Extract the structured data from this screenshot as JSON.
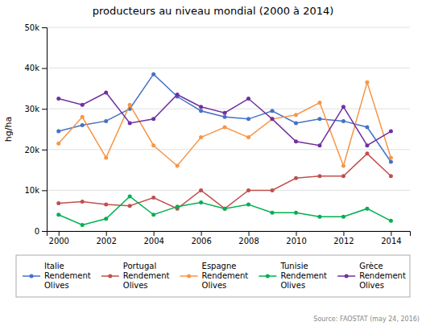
{
  "chart_data": {
    "type": "line",
    "title": "producteurs au niveau mondial (2000 à 2014)",
    "y_label": "hg/ha",
    "x": [
      2000,
      2001,
      2002,
      2003,
      2004,
      2005,
      2006,
      2007,
      2008,
      2009,
      2010,
      2011,
      2012,
      2013,
      2014
    ],
    "series": [
      {
        "name": "Italie\nRendement\nOlives",
        "color": "#4472c4",
        "values": [
          24500,
          26000,
          27000,
          30000,
          38500,
          33000,
          29500,
          28000,
          27500,
          29500,
          26500,
          27500,
          27000,
          25500,
          17000
        ]
      },
      {
        "name": "Portugal\nRendement\nOlives",
        "color": "#c0504d",
        "values": [
          6800,
          7200,
          6500,
          6200,
          8200,
          5500,
          10000,
          5500,
          10000,
          10000,
          13000,
          13500,
          13500,
          19000,
          13500
        ]
      },
      {
        "name": "Espagne\nRendement\nOlives",
        "color": "#f79646",
        "values": [
          21500,
          28000,
          18000,
          31000,
          21000,
          16000,
          23000,
          25500,
          23000,
          27500,
          28500,
          31500,
          16000,
          36500,
          18000
        ]
      },
      {
        "name": "Tunisie\nRendement\nOlives",
        "color": "#00b050",
        "values": [
          4000,
          1500,
          3000,
          8500,
          4000,
          6000,
          7000,
          5500,
          6500,
          4500,
          4500,
          3500,
          3500,
          5500,
          2500
        ]
      },
      {
        "name": "Grèce\nRendement\nOlives",
        "color": "#7030a0",
        "values": [
          32500,
          31000,
          34000,
          26500,
          27500,
          33500,
          30500,
          29000,
          32500,
          27500,
          22000,
          21000,
          30500,
          21000,
          24500
        ]
      }
    ],
    "xlim": [
      1999.5,
      2014.8
    ],
    "xticks": [
      2000,
      2002,
      2004,
      2006,
      2008,
      2010,
      2012,
      2014
    ],
    "ylim": [
      0,
      50000
    ],
    "yticks": [
      0,
      {
        "value": 10000,
        "label": "10k"
      },
      {
        "value": 20000,
        "label": "20k"
      },
      {
        "value": 30000,
        "label": "30k"
      },
      {
        "value": 40000,
        "label": "40k"
      },
      {
        "value": 50000,
        "label": "50k"
      }
    ],
    "grid": true,
    "legend": "bottom",
    "marker": "circle",
    "annotations": [
      "Source: FAOSTAT (may 24, 2016)"
    ]
  }
}
